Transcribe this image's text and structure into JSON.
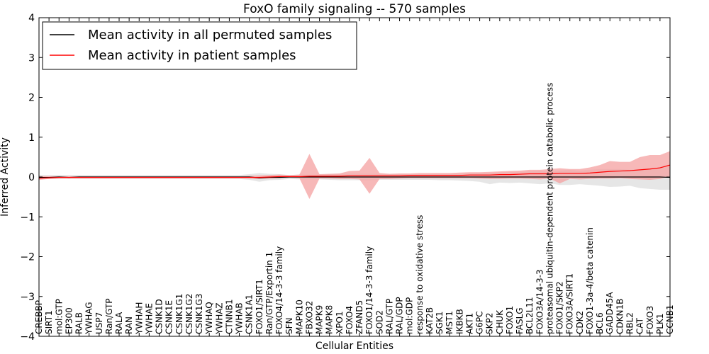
{
  "chart_data": {
    "type": "line",
    "title": "FoxO family signaling -- 570 samples",
    "xlabel": "Cellular Entities",
    "ylabel": "Inferred Activity",
    "ylim": [
      -4,
      4
    ],
    "yticks": [
      -4,
      -3,
      -2,
      -1,
      0,
      1,
      2,
      3,
      4
    ],
    "legend_position": "upper-left",
    "categories": [
      "CREBBP",
      "SIRT1",
      "mol:GTP",
      "EP300",
      "RALB",
      "YWHAG",
      "USP7",
      "Ran/GTP",
      "RALA",
      "RAN",
      "YWHAH",
      "YWHAE",
      "CSNK1D",
      "CSNK1E",
      "CSNK1G1",
      "CSNK1G2",
      "CSNK1G3",
      "YWHAQ",
      "YWHAZ",
      "CTNNB1",
      "YWHAB",
      "CSNK1A1",
      "FOXO1/SIRT1",
      "Ran/GTP/Exportin 1",
      "FOXO4/14-3-3 family",
      "SFN",
      "MAPK10",
      "FBXO32",
      "MAPK9",
      "MAPK8",
      "XPO1",
      "FOXO4",
      "ZFAND5",
      "FOXO1/14-3-3 family",
      "SOD2",
      "RAL/GTP",
      "RAL/GDP",
      "mol:GDP",
      "response to oxidative stress",
      "KAT2B",
      "SGK1",
      "MST1",
      "IKBKB",
      "AKT1",
      "G6PC",
      "SKP2",
      "CHUK",
      "FOXO1",
      "FASLG",
      "BCL2L11",
      "FOXO3A/14-3-3",
      "proteasomal ubiquitin-dependent protein catabolic process",
      "FOXO1/SKP2",
      "FOXO3A/SIRT1",
      "CDK2",
      "FOXO1-3a-4/beta catenin",
      "BCL6",
      "GADD45A",
      "CDKN1B",
      "RBL2",
      "CAT",
      "FOXO3",
      "PLK1",
      "CCNB1"
    ],
    "series": [
      {
        "name": "Mean activity in all permuted samples",
        "color": "#000000",
        "values": [
          -0.01,
          -0.01,
          0,
          -0.01,
          0,
          0,
          0,
          0,
          0,
          0,
          0,
          0,
          0,
          0,
          0,
          0,
          0,
          0,
          0,
          0,
          0,
          0,
          -0.02,
          -0.01,
          -0.01,
          0,
          0,
          0,
          0,
          0,
          0,
          0,
          0,
          0,
          0,
          0,
          0,
          0,
          0,
          0,
          0,
          0,
          0,
          0,
          0,
          0,
          0,
          0,
          0,
          0,
          0,
          0,
          0,
          0,
          0,
          0,
          0,
          0,
          0,
          0,
          0,
          0,
          0,
          -0.01
        ],
        "lower": [
          -0.06,
          -0.05,
          -0.05,
          -0.05,
          -0.05,
          -0.05,
          -0.05,
          -0.05,
          -0.05,
          -0.05,
          -0.05,
          -0.05,
          -0.05,
          -0.05,
          -0.05,
          -0.05,
          -0.05,
          -0.05,
          -0.05,
          -0.05,
          -0.05,
          -0.07,
          -0.12,
          -0.08,
          -0.07,
          -0.05,
          -0.06,
          -0.06,
          -0.06,
          -0.07,
          -0.08,
          -0.08,
          -0.08,
          -0.08,
          -0.07,
          -0.07,
          -0.07,
          -0.07,
          -0.07,
          -0.07,
          -0.08,
          -0.08,
          -0.09,
          -0.1,
          -0.12,
          -0.18,
          -0.14,
          -0.15,
          -0.14,
          -0.16,
          -0.18,
          -0.16,
          -0.2,
          -0.2,
          -0.18,
          -0.2,
          -0.22,
          -0.25,
          -0.24,
          -0.22,
          -0.28,
          -0.3,
          -0.32,
          -0.32
        ],
        "upper": [
          0.05,
          0.05,
          0.05,
          0.05,
          0.05,
          0.05,
          0.05,
          0.05,
          0.05,
          0.05,
          0.05,
          0.05,
          0.05,
          0.05,
          0.05,
          0.05,
          0.05,
          0.05,
          0.05,
          0.05,
          0.05,
          0.07,
          0.1,
          0.08,
          0.07,
          0.05,
          0.06,
          0.06,
          0.06,
          0.07,
          0.08,
          0.08,
          0.08,
          0.08,
          0.07,
          0.07,
          0.07,
          0.07,
          0.07,
          0.07,
          0.08,
          0.08,
          0.08,
          0.09,
          0.1,
          0.1,
          0.12,
          0.13,
          0.12,
          0.14,
          0.16,
          0.14,
          0.16,
          0.18,
          0.16,
          0.18,
          0.2,
          0.2,
          0.2,
          0.18,
          0.2,
          0.22,
          0.25,
          0.25
        ]
      },
      {
        "name": "Mean activity in patient samples",
        "color": "#ff0000",
        "band_color": "#f4a0a0",
        "values": [
          -0.03,
          -0.02,
          -0.01,
          -0.01,
          -0.01,
          -0.01,
          -0.01,
          -0.01,
          -0.01,
          -0.01,
          -0.01,
          -0.01,
          -0.01,
          -0.01,
          -0.01,
          -0.01,
          -0.01,
          -0.01,
          -0.01,
          -0.01,
          -0.01,
          -0.01,
          -0.01,
          0,
          0.01,
          0.01,
          0.01,
          0.02,
          0.02,
          0.02,
          0.02,
          0.03,
          0.03,
          0.03,
          0.03,
          0.03,
          0.03,
          0.04,
          0.04,
          0.04,
          0.04,
          0.04,
          0.04,
          0.05,
          0.05,
          0.05,
          0.06,
          0.06,
          0.07,
          0.08,
          0.08,
          0.08,
          0.09,
          0.09,
          0.09,
          0.1,
          0.12,
          0.14,
          0.15,
          0.16,
          0.18,
          0.2,
          0.23,
          0.3
        ],
        "lower": [
          -0.07,
          -0.05,
          -0.04,
          -0.04,
          -0.04,
          -0.04,
          -0.04,
          -0.04,
          -0.04,
          -0.04,
          -0.04,
          -0.04,
          -0.04,
          -0.04,
          -0.04,
          -0.04,
          -0.04,
          -0.04,
          -0.04,
          -0.04,
          -0.04,
          -0.04,
          -0.05,
          -0.04,
          -0.03,
          -0.02,
          -0.03,
          -0.55,
          -0.04,
          -0.04,
          -0.05,
          -0.05,
          -0.06,
          -0.42,
          -0.05,
          -0.05,
          -0.04,
          -0.03,
          -0.03,
          -0.03,
          -0.03,
          -0.03,
          -0.03,
          -0.03,
          -0.04,
          -0.05,
          -0.05,
          -0.04,
          -0.04,
          -0.05,
          -0.06,
          -0.04,
          -0.16,
          -0.05,
          -0.06,
          -0.05,
          -0.04,
          -0.04,
          -0.03,
          -0.05,
          -0.06,
          -0.07,
          -0.05,
          0.02
        ],
        "upper": [
          0.02,
          0.02,
          0.02,
          0.02,
          0.02,
          0.02,
          0.02,
          0.02,
          0.02,
          0.02,
          0.02,
          0.02,
          0.02,
          0.02,
          0.02,
          0.02,
          0.02,
          0.02,
          0.02,
          0.02,
          0.02,
          0.03,
          0.04,
          0.05,
          0.06,
          0.05,
          0.06,
          0.58,
          0.07,
          0.08,
          0.09,
          0.15,
          0.16,
          0.48,
          0.1,
          0.08,
          0.09,
          0.09,
          0.1,
          0.1,
          0.1,
          0.1,
          0.11,
          0.12,
          0.12,
          0.13,
          0.14,
          0.15,
          0.16,
          0.18,
          0.18,
          0.2,
          0.22,
          0.2,
          0.2,
          0.24,
          0.3,
          0.4,
          0.38,
          0.38,
          0.5,
          0.55,
          0.55,
          0.65
        ]
      }
    ]
  }
}
